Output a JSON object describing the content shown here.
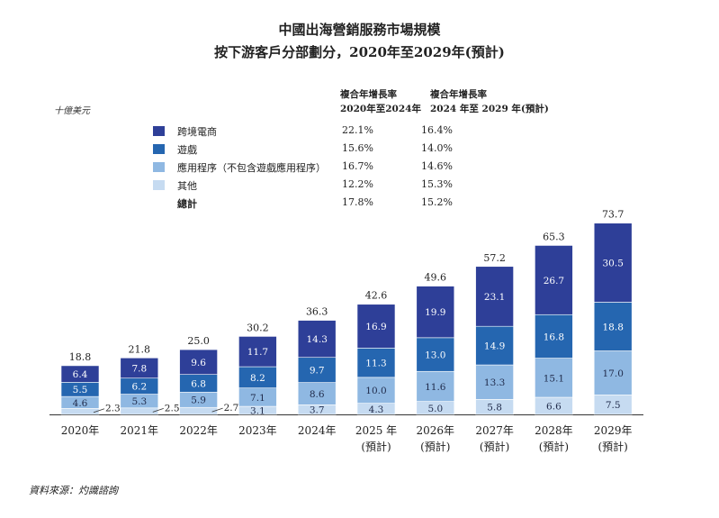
{
  "header": {
    "title1": "中國出海營銷服務市場規模",
    "title2": "按下游客戶分部劃分，2020年至2029年(預計)",
    "unit": "十億美元",
    "cagr1_l1": "複合年增長率",
    "cagr1_l2": "2020年至2024年",
    "cagr2_l1": "複合年增長率",
    "cagr2_l2": "2024 年至 2029 年(預計)"
  },
  "legend": [
    {
      "label": "跨境電商",
      "color": "#2e3f98",
      "cagr1": "22.1%",
      "cagr2": "16.4%"
    },
    {
      "label": "遊戲",
      "color": "#2566b0",
      "cagr1": "15.6%",
      "cagr2": "14.0%"
    },
    {
      "label": "應用程序（不包含遊戲應用程序）",
      "color": "#8fb8e2",
      "cagr1": "16.7%",
      "cagr2": "14.6%"
    },
    {
      "label": "其他",
      "color": "#c6dbf1",
      "cagr1": "12.2%",
      "cagr2": "15.3%"
    },
    {
      "label": "總計",
      "color": "",
      "cagr1": "17.8%",
      "cagr2": "15.2%"
    }
  ],
  "source": "資料來源：灼識諮詢",
  "chart_data": {
    "type": "bar",
    "stacked": true,
    "title": "中國出海營銷服務市場規模 按下游客戶分部劃分，2020年至2029年(預計)",
    "ylabel": "十億美元",
    "categories": [
      "2020年",
      "2021年",
      "2022年",
      "2023年",
      "2024年",
      "2025 年",
      "2026年",
      "2027年",
      "2028年",
      "2029年"
    ],
    "category_notes": [
      "",
      "",
      "",
      "",
      "",
      "(預計)",
      "(預計)",
      "(預計)",
      "(預計)",
      "(預計)"
    ],
    "series": [
      {
        "name": "其他",
        "color": "#c6dbf1",
        "values": [
          2.3,
          2.5,
          2.7,
          3.1,
          3.7,
          4.3,
          5.0,
          5.8,
          6.6,
          7.5
        ]
      },
      {
        "name": "應用程序（不包含遊戲應用程序）",
        "color": "#8fb8e2",
        "values": [
          4.6,
          5.3,
          5.9,
          7.1,
          8.6,
          10.0,
          11.6,
          13.3,
          15.1,
          17.0
        ]
      },
      {
        "name": "遊戲",
        "color": "#2566b0",
        "values": [
          5.5,
          6.2,
          6.8,
          8.2,
          9.7,
          11.3,
          13.0,
          14.9,
          16.8,
          18.8
        ]
      },
      {
        "name": "跨境電商",
        "color": "#2e3f98",
        "values": [
          6.4,
          7.8,
          9.6,
          11.7,
          14.3,
          16.9,
          19.9,
          23.1,
          26.7,
          30.5
        ]
      }
    ],
    "totals": [
      18.8,
      21.8,
      25.0,
      30.2,
      36.3,
      42.6,
      49.6,
      57.2,
      65.3,
      73.7
    ],
    "ylim": [
      0,
      73.7
    ]
  }
}
